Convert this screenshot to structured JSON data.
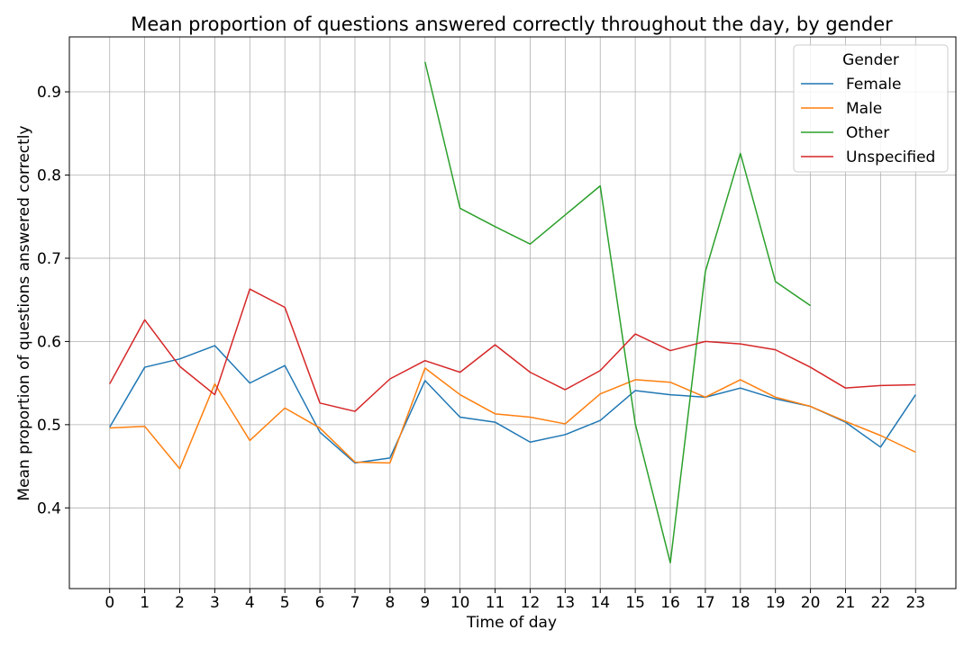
{
  "chart_data": {
    "type": "line",
    "title": "Mean proportion of questions answered correctly throughout the day, by gender",
    "xlabel": "Time of day",
    "ylabel": "Mean proportion of questions answered correctly",
    "x": [
      0,
      1,
      2,
      3,
      4,
      5,
      6,
      7,
      8,
      9,
      10,
      11,
      12,
      13,
      14,
      15,
      16,
      17,
      18,
      19,
      20,
      21,
      22,
      23
    ],
    "xlim": [
      -1.15,
      24.15
    ],
    "ylim": [
      0.303,
      0.966
    ],
    "yticks": [
      0.4,
      0.5,
      0.6,
      0.7,
      0.8,
      0.9
    ],
    "ytick_labels": [
      "0.4",
      "0.5",
      "0.6",
      "0.7",
      "0.8",
      "0.9"
    ],
    "grid": true,
    "legend": {
      "title": "Gender",
      "placement": "top-right"
    },
    "series": [
      {
        "name": "Female",
        "color": "#1f77b4",
        "values": [
          0.497,
          0.569,
          0.579,
          0.595,
          0.55,
          0.571,
          0.491,
          0.454,
          0.46,
          0.553,
          0.509,
          0.503,
          0.479,
          0.488,
          0.505,
          0.541,
          0.536,
          0.533,
          0.544,
          0.531,
          0.522,
          0.503,
          0.473,
          0.536
        ]
      },
      {
        "name": "Male",
        "color": "#ff7f0e",
        "values": [
          0.496,
          0.498,
          0.447,
          0.549,
          0.481,
          0.52,
          0.496,
          0.455,
          0.454,
          0.568,
          0.536,
          0.513,
          0.509,
          0.501,
          0.537,
          0.554,
          0.551,
          0.533,
          0.554,
          0.533,
          0.522,
          0.504,
          0.487,
          0.467
        ]
      },
      {
        "name": "Other",
        "color": "#2ca02c",
        "values": [
          null,
          null,
          null,
          null,
          null,
          null,
          null,
          null,
          null,
          0.936,
          0.76,
          0.738,
          0.717,
          0.752,
          0.787,
          0.501,
          0.334,
          0.684,
          0.826,
          0.672,
          0.643,
          null,
          null,
          null
        ]
      },
      {
        "name": "Unspecified",
        "color": "#d62728",
        "values": [
          0.549,
          0.626,
          0.57,
          0.536,
          0.663,
          0.641,
          0.526,
          0.516,
          0.555,
          0.577,
          0.563,
          0.596,
          0.563,
          0.542,
          0.565,
          0.609,
          0.589,
          0.6,
          0.597,
          0.59,
          0.569,
          0.544,
          0.547,
          0.548
        ]
      }
    ]
  }
}
